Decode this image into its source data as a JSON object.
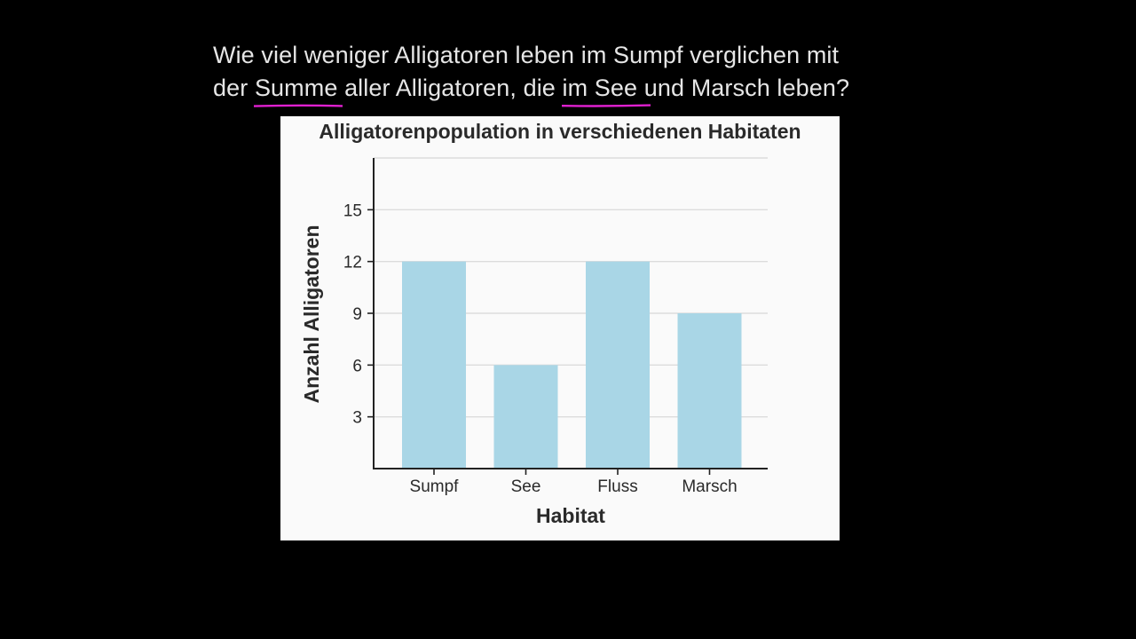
{
  "question": {
    "line1": "Wie viel weniger Alligatoren leben im Sumpf verglichen mit",
    "line2_pre": "der ",
    "line2_hl1": "Summe",
    "line2_mid": " aller Alligatoren, die ",
    "line2_hl2": "im See",
    "line2_post": " und Marsch leben?"
  },
  "colors": {
    "background": "#000000",
    "question_text": "#e6e6e6",
    "highlight_underline": "#e020d0",
    "chart_background": "#fafafa",
    "bar_fill": "#a9d6e6",
    "gridline": "#dcdcdc",
    "axis": "#222222",
    "text_dark": "#2a2a2a"
  },
  "chart_data": {
    "type": "bar",
    "title": "Alligatorenpopulation in verschiedenen Habitaten",
    "xlabel": "Habitat",
    "ylabel": "Anzahl Alligatoren",
    "categories": [
      "Sumpf",
      "See",
      "Fluss",
      "Marsch"
    ],
    "values": [
      12,
      6,
      12,
      9
    ],
    "ylim": [
      0,
      18
    ],
    "yticks": [
      3,
      6,
      9,
      12,
      15
    ],
    "gridlines": [
      3,
      6,
      9,
      12,
      15,
      18
    ],
    "grid": true,
    "legend": "none"
  }
}
